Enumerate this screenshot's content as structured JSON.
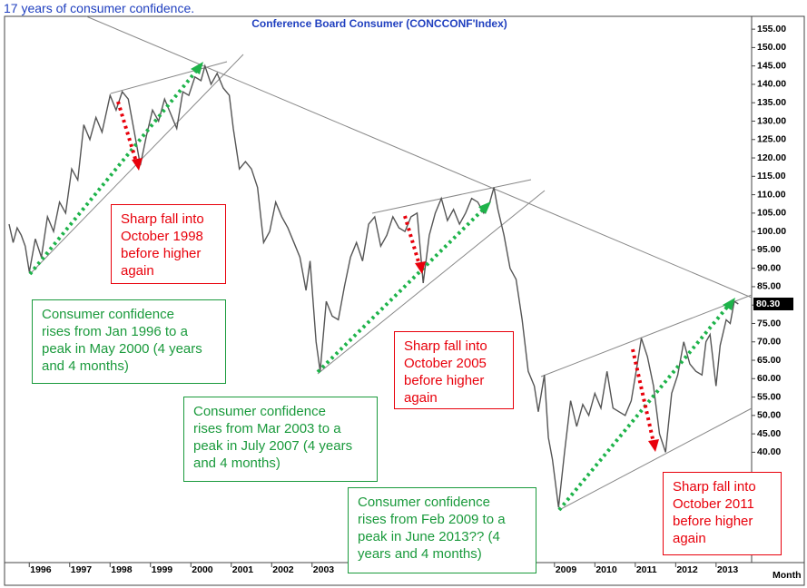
{
  "chart_data": {
    "type": "line",
    "page_title": "17 years of consumer confidence.",
    "title": "Conference Board Consumer   (CONCCONF'Index)",
    "x_unit_label": "Month",
    "color": "#555555",
    "x": [
      1995.5,
      1995.6,
      1995.7,
      1995.8,
      1995.9,
      1996.0,
      1996.15,
      1996.3,
      1996.45,
      1996.6,
      1996.75,
      1996.9,
      1997.05,
      1997.2,
      1997.35,
      1997.5,
      1997.65,
      1997.8,
      1998.0,
      1998.15,
      1998.3,
      1998.45,
      1998.6,
      1998.75,
      1998.9,
      1999.05,
      1999.2,
      1999.35,
      1999.5,
      1999.65,
      1999.8,
      1999.95,
      2000.1,
      2000.25,
      2000.35,
      2000.5,
      2000.65,
      2000.8,
      2000.95,
      2001.05,
      2001.2,
      2001.35,
      2001.5,
      2001.65,
      2001.8,
      2001.95,
      2002.1,
      2002.25,
      2002.4,
      2002.55,
      2002.7,
      2002.85,
      2002.95,
      2003.1,
      2003.2,
      2003.35,
      2003.5,
      2003.65,
      2003.8,
      2003.95,
      2004.1,
      2004.25,
      2004.4,
      2004.55,
      2004.7,
      2004.85,
      2005.0,
      2005.15,
      2005.3,
      2005.45,
      2005.6,
      2005.75,
      2005.9,
      2006.05,
      2006.2,
      2006.35,
      2006.5,
      2006.65,
      2006.8,
      2006.95,
      2007.1,
      2007.25,
      2007.4,
      2007.5,
      2007.6,
      2007.75,
      2007.9,
      2008.05,
      2008.2,
      2008.35,
      2008.5,
      2008.6,
      2008.75,
      2008.85,
      2008.95,
      2009.1,
      2009.25,
      2009.4,
      2009.55,
      2009.7,
      2009.85,
      2010.0,
      2010.15,
      2010.3,
      2010.45,
      2010.6,
      2010.75,
      2010.9,
      2011.05,
      2011.15,
      2011.3,
      2011.45,
      2011.6,
      2011.75,
      2011.9,
      2012.05,
      2012.2,
      2012.35,
      2012.5,
      2012.65,
      2012.75,
      2012.85,
      2013.0,
      2013.1,
      2013.25,
      2013.35,
      2013.45,
      2013.55
    ],
    "values": [
      102,
      97,
      101,
      99,
      96,
      89,
      98,
      93,
      104,
      100,
      108,
      105,
      117,
      114,
      129,
      125,
      131,
      127,
      137,
      133,
      138,
      136,
      127,
      118,
      126,
      133,
      130,
      136,
      132,
      128,
      138,
      137,
      142,
      141,
      145,
      140,
      143,
      139,
      137,
      128,
      117,
      119,
      117,
      112,
      97,
      100,
      108,
      104,
      101,
      97,
      93,
      84,
      92,
      70,
      62,
      81,
      77,
      76,
      85,
      93,
      97,
      92,
      102,
      104,
      96,
      99,
      104,
      101,
      100,
      104,
      105,
      86,
      99,
      105,
      109,
      103,
      106,
      102,
      105,
      109,
      108,
      105,
      108,
      112,
      106,
      99,
      90,
      87,
      76,
      62,
      58,
      51,
      61,
      44,
      38,
      25,
      40,
      54,
      47,
      53,
      50,
      56,
      52,
      62,
      52,
      51,
      50,
      54,
      64,
      71,
      66,
      58,
      45,
      40,
      56,
      61,
      70,
      64,
      62,
      61,
      70,
      72,
      58,
      69,
      76,
      75,
      81,
      80.3
    ],
    "last_value": {
      "value": 80.3,
      "label": "80.30"
    },
    "xlim": [
      1995.5,
      2013.88
    ],
    "xticks": [
      1996,
      1997,
      1998,
      1999,
      2000,
      2001,
      2002,
      2003,
      2009,
      2010,
      2011,
      2012,
      2013
    ],
    "ylim": [
      10,
      157.5
    ],
    "yticks": [
      {
        "value": 40,
        "label": "40.00"
      },
      {
        "value": 45,
        "label": "45.00"
      },
      {
        "value": 50,
        "label": "50.00"
      },
      {
        "value": 55,
        "label": "55.00"
      },
      {
        "value": 60,
        "label": "60.00"
      },
      {
        "value": 65,
        "label": "65.00"
      },
      {
        "value": 70,
        "label": "70.00"
      },
      {
        "value": 75,
        "label": "75.00"
      },
      {
        "value": 80,
        "label": "80.00"
      },
      {
        "value": 85,
        "label": "85.00"
      },
      {
        "value": 90,
        "label": "90.00"
      },
      {
        "value": 95,
        "label": "95.00"
      },
      {
        "value": 100,
        "label": "100.00"
      },
      {
        "value": 105,
        "label": "105.00"
      },
      {
        "value": 110,
        "label": "110.00"
      },
      {
        "value": 115,
        "label": "115.00"
      },
      {
        "value": 120,
        "label": "120.00"
      },
      {
        "value": 125,
        "label": "125.00"
      },
      {
        "value": 130,
        "label": "130.00"
      },
      {
        "value": 135,
        "label": "135.00"
      },
      {
        "value": 140,
        "label": "140.00"
      },
      {
        "value": 145,
        "label": "145.00"
      },
      {
        "value": 150,
        "label": "150.00"
      },
      {
        "value": 155,
        "label": "155.00"
      }
    ],
    "annotations": [
      {
        "lines": [
          "Sharp fall into",
          "October 1998",
          "before higher",
          "again"
        ],
        "color": "#e8000b"
      },
      {
        "lines": [
          "Consumer confidence",
          "rises from Jan 1996 to a",
          "peak in May 2000 (4 years",
          "and 4 months)"
        ],
        "color": "#1a9a3c"
      },
      {
        "lines": [
          "Sharp fall into",
          "October 2005",
          "before higher",
          "again"
        ],
        "color": "#e8000b"
      },
      {
        "lines": [
          "Consumer confidence",
          "rises from Mar 2003 to a",
          "peak in July 2007 (4 years",
          "and 4 months)"
        ],
        "color": "#1a9a3c"
      },
      {
        "lines": [
          "Consumer confidence",
          "rises from Feb 2009 to a",
          "peak in June 2013?? (4",
          "years and 4 months)"
        ],
        "color": "#1a9a3c"
      },
      {
        "lines": [
          "Sharp fall into",
          "October 2011",
          "before higher",
          "again"
        ],
        "color": "#e8000b"
      }
    ]
  }
}
